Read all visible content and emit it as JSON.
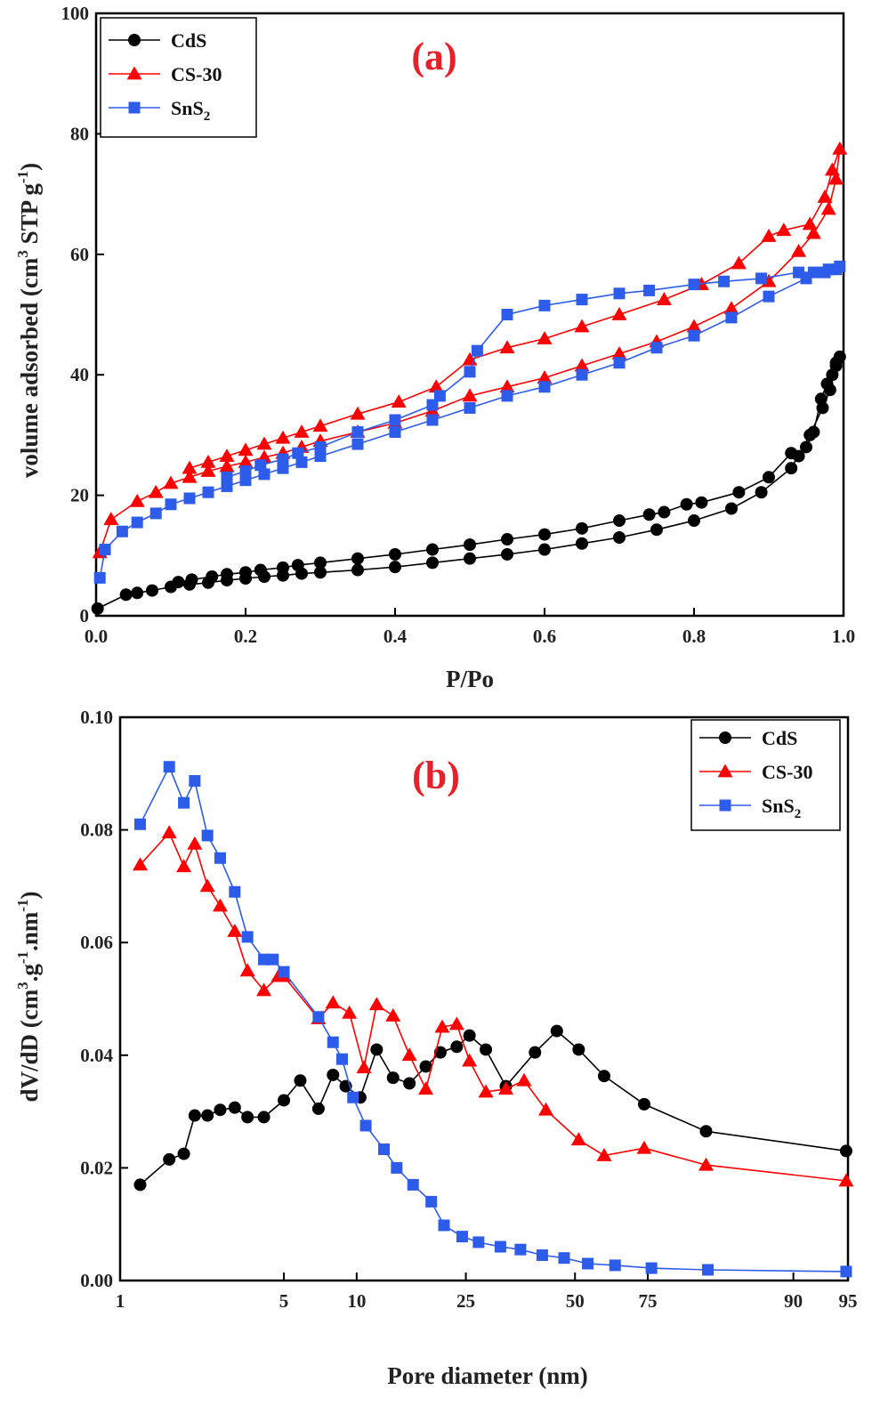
{
  "chart_data": [
    {
      "type": "line",
      "panel_label": "(a)",
      "xlabel": "P/Po",
      "ylabel": "volume adsorbed (cm",
      "ylabel_sup1": "3",
      "ylabel_mid": " STP g",
      "ylabel_sup2": "-1",
      "ylabel_end": ")",
      "xlim": [
        0,
        1.0
      ],
      "ylim": [
        0,
        100
      ],
      "x_ticks": [
        0.0,
        0.2,
        0.4,
        0.6,
        0.8,
        1.0
      ],
      "x_tick_labels": [
        "0.0",
        "0.2",
        "0.4",
        "0.6",
        "0.8",
        "1.0"
      ],
      "y_ticks": [
        0,
        20,
        40,
        60,
        80,
        100
      ],
      "y_tick_labels": [
        "0",
        "20",
        "40",
        "60",
        "80",
        "100"
      ],
      "legend": {
        "position": "top-left",
        "entries": [
          {
            "label": "CdS",
            "sub": ""
          },
          {
            "label": "CS-30",
            "sub": ""
          },
          {
            "label": "SnS",
            "sub": "2"
          }
        ]
      },
      "series": [
        {
          "name": "CdS",
          "color": "#000000",
          "marker": "circle",
          "x": [
            0.002,
            0.04,
            0.055,
            0.075,
            0.1,
            0.125,
            0.15,
            0.175,
            0.2,
            0.225,
            0.25,
            0.275,
            0.3,
            0.35,
            0.4,
            0.45,
            0.5,
            0.55,
            0.6,
            0.65,
            0.7,
            0.75,
            0.8,
            0.85,
            0.89,
            0.93,
            0.955,
            0.972,
            0.982,
            0.99,
            0.995,
            0.99,
            0.985,
            0.978,
            0.97,
            0.96,
            0.95,
            0.94,
            0.93,
            0.9,
            0.86,
            0.81,
            0.79,
            0.76,
            0.74,
            0.7,
            0.65,
            0.6,
            0.55,
            0.5,
            0.45,
            0.4,
            0.35,
            0.3,
            0.27,
            0.25,
            0.22,
            0.2,
            0.175,
            0.155,
            0.128,
            0.11
          ],
          "y": [
            1.2,
            3.5,
            3.8,
            4.2,
            4.8,
            5.2,
            5.5,
            5.9,
            6.2,
            6.5,
            6.7,
            7.0,
            7.2,
            7.6,
            8.1,
            8.8,
            9.5,
            10.2,
            11.0,
            12.0,
            13.0,
            14.3,
            15.8,
            17.8,
            20.5,
            24.5,
            30.0,
            34.5,
            37.5,
            41.5,
            43.0,
            42.0,
            40.0,
            38.5,
            36.0,
            30.5,
            28.0,
            26.5,
            27.0,
            23.0,
            20.5,
            18.8,
            18.5,
            17.2,
            16.8,
            15.8,
            14.5,
            13.5,
            12.7,
            11.8,
            11.0,
            10.2,
            9.5,
            8.8,
            8.4,
            8.0,
            7.6,
            7.2,
            6.9,
            6.5,
            6.0,
            5.6
          ]
        },
        {
          "name": "CS-30",
          "color": "#ff0000",
          "marker": "triangle",
          "x": [
            0.005,
            0.02,
            0.055,
            0.08,
            0.1,
            0.125,
            0.15,
            0.175,
            0.2,
            0.225,
            0.25,
            0.275,
            0.3,
            0.35,
            0.4,
            0.45,
            0.5,
            0.55,
            0.6,
            0.65,
            0.7,
            0.75,
            0.8,
            0.85,
            0.9,
            0.94,
            0.96,
            0.98,
            0.99,
            0.995,
            0.985,
            0.975,
            0.955,
            0.92,
            0.9,
            0.86,
            0.81,
            0.76,
            0.7,
            0.65,
            0.6,
            0.55,
            0.5,
            0.455,
            0.405,
            0.35,
            0.3,
            0.275,
            0.25,
            0.225,
            0.2,
            0.175,
            0.15,
            0.125
          ],
          "y": [
            10.5,
            16.0,
            19.0,
            20.5,
            22.0,
            23.0,
            24.0,
            24.8,
            25.5,
            26.3,
            27.0,
            28.0,
            29.0,
            30.5,
            32.0,
            34.0,
            36.5,
            38.0,
            39.5,
            41.5,
            43.5,
            45.5,
            48.0,
            51.0,
            55.5,
            60.5,
            63.5,
            67.5,
            72.5,
            77.5,
            74.0,
            69.5,
            65.0,
            64.0,
            63.0,
            58.5,
            55.0,
            52.5,
            50.0,
            48.0,
            46.0,
            44.5,
            42.5,
            38.0,
            35.5,
            33.5,
            31.5,
            30.5,
            29.5,
            28.5,
            27.5,
            26.5,
            25.5,
            24.5
          ]
        },
        {
          "name": "SnS2",
          "color": "#2e5cea",
          "marker": "square",
          "x": [
            0.005,
            0.012,
            0.035,
            0.055,
            0.08,
            0.1,
            0.125,
            0.15,
            0.175,
            0.2,
            0.225,
            0.25,
            0.275,
            0.3,
            0.35,
            0.4,
            0.45,
            0.5,
            0.55,
            0.6,
            0.65,
            0.7,
            0.75,
            0.8,
            0.85,
            0.9,
            0.95,
            0.975,
            0.99,
            0.995,
            0.98,
            0.96,
            0.94,
            0.89,
            0.84,
            0.8,
            0.74,
            0.7,
            0.65,
            0.6,
            0.55,
            0.51,
            0.5,
            0.46,
            0.45,
            0.4,
            0.35,
            0.3,
            0.27,
            0.25,
            0.22,
            0.2,
            0.175
          ],
          "y": [
            6.3,
            11.0,
            14.0,
            15.5,
            17.0,
            18.5,
            19.5,
            20.5,
            21.5,
            22.5,
            23.5,
            24.5,
            25.5,
            26.5,
            28.5,
            30.5,
            32.5,
            34.5,
            36.5,
            38.0,
            40.0,
            42.0,
            44.5,
            46.5,
            49.5,
            53.0,
            56.0,
            57.0,
            57.5,
            58.0,
            57.5,
            57.0,
            57.0,
            56.0,
            55.5,
            55.0,
            54.0,
            53.5,
            52.5,
            51.5,
            50.0,
            44.0,
            40.5,
            36.5,
            35.0,
            32.5,
            30.5,
            28.0,
            27.0,
            26.0,
            25.0,
            24.0,
            23.0
          ]
        }
      ]
    },
    {
      "type": "line",
      "panel_label": "(b)",
      "xlabel": "Pore diameter (nm)",
      "ylabel": "dV/dD (cm",
      "ylabel_sup1": "3",
      "ylabel_mid": ".g",
      "ylabel_sup2": "-1",
      "ylabel_mid2": ".nm",
      "ylabel_sup3": "-1",
      "ylabel_end": ")",
      "x_axis_note": "categorical-like pore diameter axis; x given as axis position index 0-20",
      "xlim": [
        0,
        20
      ],
      "ylim": [
        0,
        0.1
      ],
      "x_ticks": [
        0,
        4.5,
        6.5,
        9.5,
        12.5,
        14.5,
        16.5,
        18.5,
        20
      ],
      "x_tick_labels": [
        "1",
        "5",
        "10",
        "25",
        "50",
        "75",
        "90",
        "95"
      ],
      "x_tick_positions": [
        0,
        4.5,
        6.5,
        9.5,
        12.5,
        14.5,
        18.5,
        20
      ],
      "y_ticks": [
        0.0,
        0.02,
        0.04,
        0.06,
        0.08,
        0.1
      ],
      "y_tick_labels": [
        "0.00",
        "0.02",
        "0.04",
        "0.06",
        "0.08",
        "0.10"
      ],
      "legend": {
        "position": "top-right",
        "entries": [
          {
            "label": "CdS",
            "sub": ""
          },
          {
            "label": "CS-30",
            "sub": ""
          },
          {
            "label": "SnS",
            "sub": "2"
          }
        ]
      },
      "series": [
        {
          "name": "CdS",
          "color": "#000000",
          "marker": "circle",
          "x": [
            0.55,
            1.35,
            1.75,
            2.05,
            2.4,
            2.75,
            3.15,
            3.5,
            3.95,
            4.5,
            4.95,
            5.45,
            5.85,
            6.2,
            6.6,
            7.05,
            7.5,
            7.95,
            8.4,
            8.8,
            9.25,
            9.6,
            10.05,
            10.6,
            11.4,
            12.0,
            12.6,
            13.3,
            14.4,
            16.1,
            19.95
          ],
          "y": [
            0.017,
            0.0215,
            0.0225,
            0.0293,
            0.0293,
            0.0303,
            0.0307,
            0.029,
            0.029,
            0.032,
            0.0355,
            0.0305,
            0.0365,
            0.0345,
            0.0325,
            0.041,
            0.036,
            0.035,
            0.038,
            0.0405,
            0.0415,
            0.0435,
            0.041,
            0.0345,
            0.0405,
            0.0443,
            0.041,
            0.0363,
            0.0313,
            0.0265,
            0.023
          ]
        },
        {
          "name": "CS-30",
          "color": "#ff0000",
          "marker": "triangle",
          "x": [
            0.55,
            1.35,
            1.75,
            2.05,
            2.4,
            2.75,
            3.15,
            3.5,
            3.95,
            4.35,
            4.5,
            5.45,
            5.85,
            6.3,
            6.7,
            7.05,
            7.5,
            7.95,
            8.4,
            8.85,
            9.25,
            9.6,
            10.05,
            10.6,
            11.1,
            11.7,
            12.6,
            13.3,
            14.4,
            16.1,
            19.95
          ],
          "y": [
            0.0738,
            0.0795,
            0.0735,
            0.0775,
            0.07,
            0.0665,
            0.062,
            0.055,
            0.0515,
            0.054,
            0.054,
            0.0465,
            0.0493,
            0.0475,
            0.0378,
            0.049,
            0.047,
            0.04,
            0.034,
            0.045,
            0.0455,
            0.039,
            0.0335,
            0.034,
            0.0355,
            0.0303,
            0.025,
            0.0222,
            0.0235,
            0.0205,
            0.0177
          ]
        },
        {
          "name": "SnS2",
          "color": "#2e5cea",
          "marker": "square",
          "x": [
            0.55,
            1.35,
            1.75,
            2.05,
            2.4,
            2.75,
            3.15,
            3.5,
            3.95,
            4.2,
            4.5,
            5.45,
            5.85,
            6.1,
            6.4,
            6.75,
            7.25,
            7.6,
            8.05,
            8.55,
            8.9,
            9.4,
            9.85,
            10.45,
            11.0,
            11.6,
            12.2,
            12.85,
            13.6,
            14.6,
            16.15,
            19.95
          ],
          "y": [
            0.081,
            0.0912,
            0.0848,
            0.0887,
            0.079,
            0.075,
            0.069,
            0.061,
            0.057,
            0.057,
            0.0548,
            0.0468,
            0.0423,
            0.0393,
            0.0325,
            0.0275,
            0.0233,
            0.02,
            0.017,
            0.014,
            0.0098,
            0.0078,
            0.0068,
            0.006,
            0.0055,
            0.0045,
            0.004,
            0.003,
            0.0027,
            0.0022,
            0.0019,
            0.0016
          ]
        }
      ]
    }
  ]
}
